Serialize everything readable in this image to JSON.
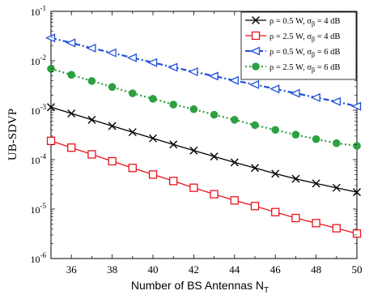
{
  "chart_data": {
    "type": "line",
    "xlabel": "Number of BS Antennas N",
    "xlabel_sub": "T",
    "ylabel": "UB-SDVP",
    "xlim": [
      35,
      50
    ],
    "ylim": [
      1e-06,
      0.1
    ],
    "yscale": "log",
    "xticks": [
      36,
      38,
      40,
      42,
      44,
      46,
      48,
      50
    ],
    "yticks": [
      {
        "value": 1e-06,
        "base": "10",
        "exp": "-6"
      },
      {
        "value": 1e-05,
        "base": "10",
        "exp": "-5"
      },
      {
        "value": 0.0001,
        "base": "10",
        "exp": "-4"
      },
      {
        "value": 0.001,
        "base": "10",
        "exp": "-3"
      },
      {
        "value": 0.01,
        "base": "10",
        "exp": "-2"
      },
      {
        "value": 0.1,
        "base": "10",
        "exp": "-1"
      }
    ],
    "legend_position": "top-right",
    "x": [
      35,
      36,
      37,
      38,
      39,
      40,
      41,
      42,
      43,
      44,
      45,
      46,
      47,
      48,
      49,
      50
    ],
    "series": [
      {
        "legend_main": "ρ = 0.5 W, σ",
        "legend_sub": "β",
        "legend_tail": "= 4 dB",
        "color": "#000000",
        "marker": "x",
        "dash": "solid",
        "values": [
          0.00115,
          0.00086,
          0.00064,
          0.00048,
          0.00036,
          0.00027,
          0.000203,
          0.000153,
          0.000116,
          8.8e-05,
          6.8e-05,
          5.2e-05,
          4.1e-05,
          3.3e-05,
          2.7e-05,
          2.2e-05
        ]
      },
      {
        "legend_main": "ρ = 2.5 W, σ",
        "legend_sub": "β",
        "legend_tail": "= 4 dB",
        "color": "#e8141b",
        "marker": "square",
        "dash": "solid",
        "values": [
          0.00024,
          0.000175,
          0.000128,
          9.3e-05,
          6.8e-05,
          5e-05,
          3.7e-05,
          2.7e-05,
          2e-05,
          1.5e-05,
          1.15e-05,
          8.7e-06,
          6.6e-06,
          5.2e-06,
          4.1e-06,
          3.2e-06
        ]
      },
      {
        "legend_main": "ρ = 0.5 W, σ",
        "legend_sub": "β",
        "legend_tail": "= 6 dB",
        "color": "#1f4fd8",
        "marker": "triangle-left",
        "dash": "dashdot",
        "values": [
          0.029,
          0.023,
          0.018,
          0.0145,
          0.0115,
          0.0092,
          0.0074,
          0.006,
          0.0049,
          0.004,
          0.0033,
          0.0027,
          0.0022,
          0.0018,
          0.0015,
          0.0012
        ]
      },
      {
        "legend_main": "ρ = 2.5 W, σ",
        "legend_sub": "β",
        "legend_tail": "= 6 dB",
        "color": "#2ea043",
        "marker": "circle",
        "dash": "dot",
        "values": [
          0.0069,
          0.0052,
          0.0039,
          0.00295,
          0.0022,
          0.0017,
          0.0013,
          0.00105,
          0.00081,
          0.00064,
          0.0005,
          0.0004,
          0.00032,
          0.00026,
          0.000215,
          0.00019
        ]
      }
    ]
  }
}
